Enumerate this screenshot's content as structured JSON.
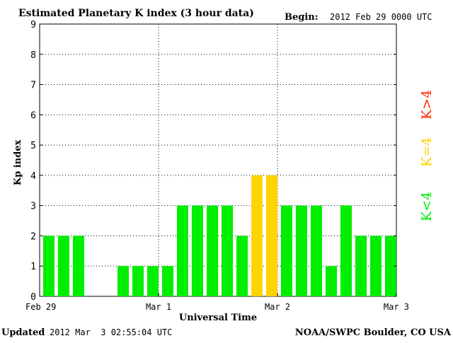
{
  "header": {
    "title": "Estimated Planetary K index (3 hour data)",
    "begin_label": "Begin:",
    "begin_value": "2012 Feb 29 0000 UTC"
  },
  "footer": {
    "updated_label": "Updated",
    "updated_value": "2012 Mar  3 02:55:04 UTC",
    "source": "NOAA/SWPC Boulder, CO USA"
  },
  "legend": {
    "items": [
      {
        "label": "K<4",
        "color": "#00ee00"
      },
      {
        "label": "K=4",
        "color": "#ffd400"
      },
      {
        "label": "K>4",
        "color": "#ff2a00"
      }
    ]
  },
  "chart_data": {
    "type": "bar",
    "title": "Estimated Planetary K index (3 hour data)",
    "xlabel": "Universal Time",
    "ylabel": "Kp index",
    "ylim": [
      0,
      9
    ],
    "yticks": [
      "0",
      "1",
      "2",
      "3",
      "4",
      "5",
      "6",
      "7",
      "8",
      "9"
    ],
    "xticks": [
      "Feb 29",
      "Mar 1",
      "Mar 2",
      "Mar 3"
    ],
    "grid": true,
    "series": [
      {
        "values": [
          2,
          2,
          2,
          0,
          0,
          1,
          1,
          1,
          1,
          3,
          3,
          3,
          3,
          2,
          4,
          4,
          3,
          3,
          3,
          1,
          3,
          2,
          2,
          2
        ],
        "colors": [
          "green",
          "green",
          "green",
          "green",
          "green",
          "green",
          "green",
          "green",
          "green",
          "green",
          "green",
          "green",
          "green",
          "green",
          "yellow",
          "yellow",
          "green",
          "green",
          "green",
          "green",
          "green",
          "green",
          "green",
          "green"
        ]
      }
    ]
  }
}
